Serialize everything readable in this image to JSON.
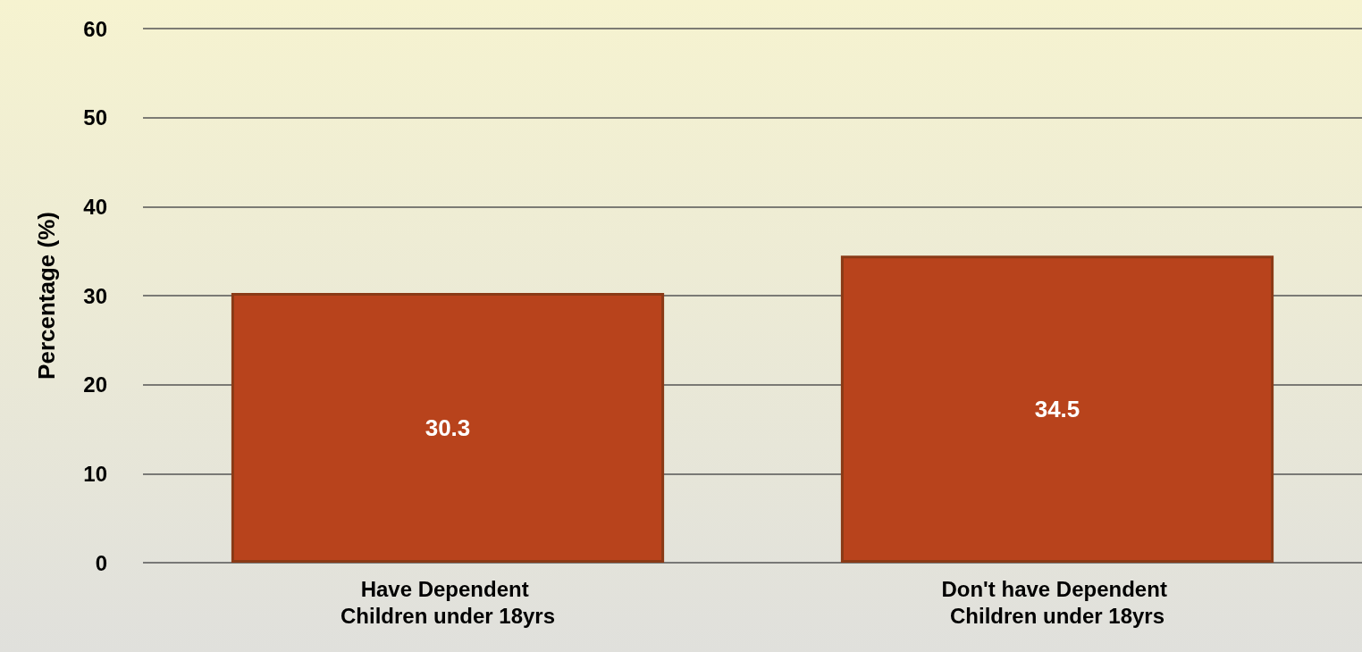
{
  "chart_data": {
    "type": "bar",
    "ylabel": "Percentage (%)",
    "categories": [
      "Have Dependent Children under 18yrs",
      "Don't have Dependent Children under 18yrs"
    ],
    "values": [
      30.3,
      34.5
    ],
    "color": "#b8431c",
    "ylim": [
      0,
      60
    ],
    "yticks": [
      0,
      10,
      20,
      30,
      40,
      50,
      60
    ],
    "grid": "y",
    "data_labels": true
  }
}
